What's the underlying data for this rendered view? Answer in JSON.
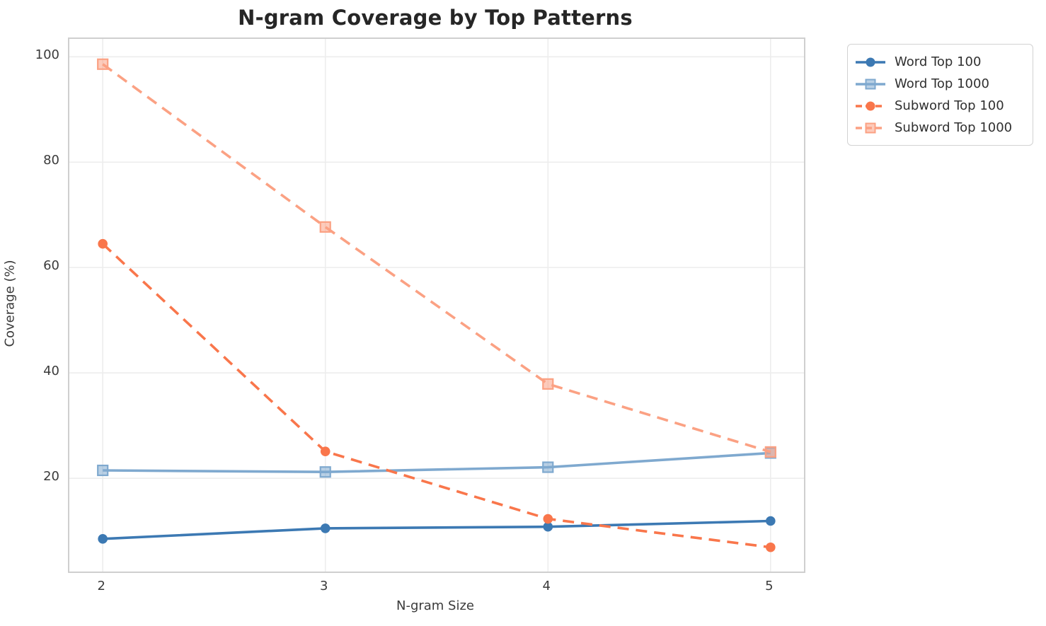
{
  "title": "N-gram Coverage by Top Patterns",
  "chart_data": {
    "type": "line",
    "title": "N-gram Coverage by Top Patterns",
    "xlabel": "N-gram Size",
    "ylabel": "Coverage (%)",
    "x": [
      2,
      3,
      4,
      5
    ],
    "x_tick_labels": [
      "2",
      "3",
      "4",
      "5"
    ],
    "y_ticks": [
      20,
      40,
      60,
      80,
      100
    ],
    "y_tick_labels": [
      "20",
      "40",
      "60",
      "80",
      "100"
    ],
    "xlim": [
      1.85,
      5.15
    ],
    "ylim": [
      2.3,
      103.4
    ],
    "grid": true,
    "legend_position": "outside-right",
    "series": [
      {
        "name": "Word Top 100",
        "values": [
          8.5,
          10.5,
          10.8,
          11.9
        ],
        "color": "#3C79B3",
        "marker": "circle",
        "line_style": "solid"
      },
      {
        "name": "Word Top 1000",
        "values": [
          21.5,
          21.2,
          22.1,
          24.8
        ],
        "color": "#7FA9CF",
        "marker": "square",
        "line_style": "solid"
      },
      {
        "name": "Subword Top 100",
        "values": [
          64.5,
          25.1,
          12.3,
          6.9
        ],
        "color": "#F9764B",
        "marker": "circle",
        "line_style": "dashed"
      },
      {
        "name": "Subword Top 1000",
        "values": [
          98.6,
          67.7,
          37.9,
          25.0
        ],
        "color": "#FBA183",
        "marker": "square",
        "line_style": "dashed"
      }
    ],
    "colors": {
      "grid": "#ededed",
      "spine": "#cfcfcf",
      "title_text": "#262626",
      "tick_text": "#3b3b3b",
      "legend_border": "#d2d2d2"
    }
  }
}
